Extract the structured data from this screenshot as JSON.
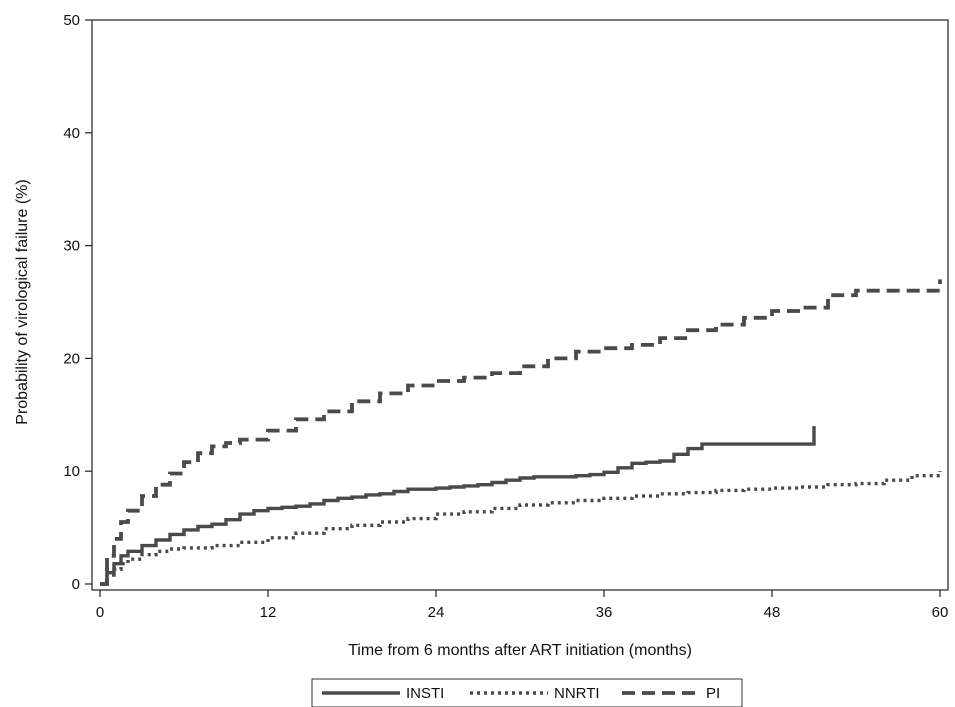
{
  "chart_data": {
    "type": "line",
    "step": true,
    "xlabel": "Time from 6 months after ART initiation (months)",
    "ylabel": "Probability of virological failure (%)",
    "xlim": [
      0,
      60
    ],
    "ylim": [
      0,
      50
    ],
    "xticks": [
      0,
      12,
      24,
      36,
      48,
      60
    ],
    "yticks": [
      0,
      10,
      20,
      30,
      40,
      50
    ],
    "grid": false,
    "legend_position": "bottom",
    "series": [
      {
        "name": "INSTI",
        "style": "solid",
        "x": [
          0,
          0.5,
          1,
          1.5,
          2,
          3,
          4,
          5,
          6,
          7,
          8,
          9,
          10,
          11,
          12,
          13,
          14,
          15,
          16,
          17,
          18,
          19,
          20,
          21,
          22,
          24,
          25,
          26,
          27,
          28,
          29,
          30,
          31,
          32,
          33,
          34,
          35,
          36,
          37,
          38,
          39,
          40,
          41,
          42,
          43,
          44,
          45,
          46,
          47,
          48,
          49,
          50,
          51,
          51
        ],
        "y": [
          0,
          1.0,
          1.8,
          2.5,
          2.9,
          3.4,
          3.9,
          4.4,
          4.8,
          5.1,
          5.3,
          5.7,
          6.2,
          6.5,
          6.7,
          6.8,
          6.9,
          7.1,
          7.4,
          7.6,
          7.7,
          7.9,
          8.0,
          8.2,
          8.4,
          8.5,
          8.6,
          8.7,
          8.8,
          9.0,
          9.2,
          9.4,
          9.5,
          9.5,
          9.5,
          9.6,
          9.7,
          9.9,
          10.3,
          10.7,
          10.8,
          10.9,
          11.5,
          12.0,
          12.4,
          12.4,
          12.4,
          12.4,
          12.4,
          12.4,
          12.4,
          12.4,
          12.4,
          14.0
        ]
      },
      {
        "name": "NNRTI",
        "style": "dotted",
        "x": [
          0,
          0.5,
          1,
          1.5,
          2,
          3,
          4,
          5,
          6,
          8,
          10,
          12,
          14,
          16,
          18,
          20,
          22,
          24,
          26,
          28,
          30,
          32,
          34,
          36,
          38,
          40,
          42,
          44,
          46,
          48,
          50,
          52,
          54,
          56,
          58,
          60
        ],
        "y": [
          0,
          0.8,
          1.3,
          1.8,
          2.2,
          2.6,
          2.9,
          3.1,
          3.2,
          3.4,
          3.7,
          4.1,
          4.5,
          4.9,
          5.2,
          5.5,
          5.8,
          6.2,
          6.4,
          6.7,
          7.0,
          7.2,
          7.4,
          7.6,
          7.8,
          8.0,
          8.1,
          8.3,
          8.4,
          8.5,
          8.6,
          8.8,
          8.9,
          9.2,
          9.6,
          10.0
        ]
      },
      {
        "name": "PI",
        "style": "dashed",
        "x": [
          0,
          0.5,
          1,
          1.5,
          2,
          3,
          4,
          5,
          6,
          7,
          8,
          9,
          10,
          12,
          14,
          16,
          18,
          20,
          22,
          24,
          26,
          28,
          30,
          32,
          34,
          36,
          38,
          40,
          42,
          44,
          46,
          48,
          50,
          51,
          52,
          54,
          56,
          58,
          59.5,
          60
        ],
        "y": [
          0,
          2.5,
          4.0,
          5.5,
          6.5,
          7.8,
          8.8,
          9.8,
          10.8,
          11.6,
          12.2,
          12.5,
          12.8,
          13.6,
          14.6,
          15.3,
          16.2,
          16.9,
          17.6,
          18.0,
          18.3,
          18.7,
          19.3,
          20.0,
          20.6,
          20.9,
          21.2,
          21.8,
          22.5,
          23.0,
          23.6,
          24.2,
          24.5,
          24.5,
          25.6,
          26.0,
          26.0,
          26.0,
          26.0,
          27.0
        ]
      }
    ]
  }
}
